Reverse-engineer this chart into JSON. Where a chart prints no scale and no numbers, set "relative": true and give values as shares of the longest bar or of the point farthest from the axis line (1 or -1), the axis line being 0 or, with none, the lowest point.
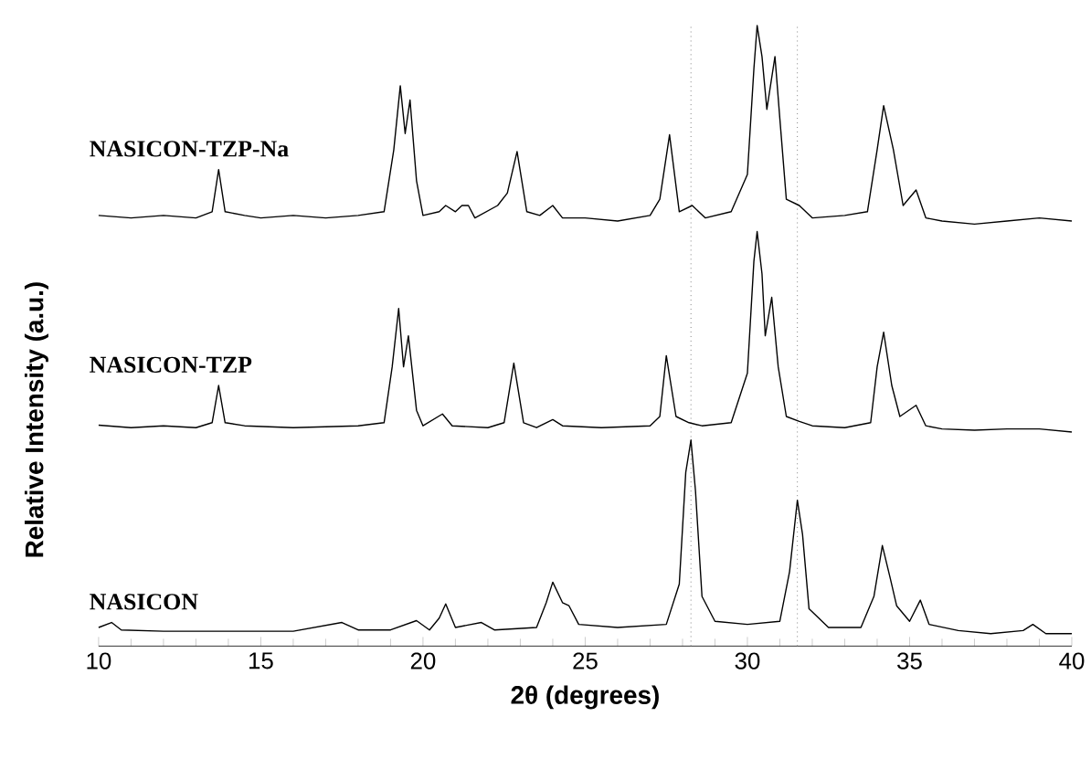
{
  "chart_data": {
    "type": "line",
    "relative": true,
    "xlabel": "2θ (degrees)",
    "ylabel": "Relative Intensity (a.u.)",
    "xlim": [
      10,
      40
    ],
    "xticks": [
      10,
      15,
      20,
      25,
      30,
      35,
      40
    ],
    "ref_lines": [
      {
        "axis": "x",
        "value": 28.26,
        "color": "#808080",
        "line_style": "dotted"
      },
      {
        "axis": "x",
        "value": 31.54,
        "color": "#808080",
        "line_style": "dotted"
      }
    ],
    "series": [
      {
        "name": "NASICON-TZP-Na",
        "color": "#000000",
        "x": [
          10,
          11,
          12,
          13,
          13.5,
          13.7,
          13.9,
          14.5,
          15,
          16,
          17,
          18,
          18.8,
          19.1,
          19.3,
          19.45,
          19.6,
          19.8,
          20,
          20.5,
          20.7,
          21,
          21.2,
          21.4,
          21.6,
          22.3,
          22.6,
          22.9,
          23.2,
          23.6,
          24,
          24.3,
          25,
          26,
          27,
          27.3,
          27.6,
          27.9,
          28.3,
          28.7,
          29.5,
          30,
          30.2,
          30.3,
          30.45,
          30.6,
          30.85,
          31.0,
          31.2,
          31.6,
          32,
          33,
          33.7,
          34.0,
          34.2,
          34.5,
          34.8,
          35.2,
          35.5,
          36,
          37,
          38,
          39,
          40
        ],
        "values": [
          0.694,
          0.69,
          0.694,
          0.69,
          0.7,
          0.768,
          0.7,
          0.694,
          0.69,
          0.694,
          0.69,
          0.694,
          0.7,
          0.8,
          0.903,
          0.826,
          0.88,
          0.75,
          0.694,
          0.7,
          0.71,
          0.7,
          0.71,
          0.71,
          0.69,
          0.71,
          0.73,
          0.797,
          0.7,
          0.694,
          0.71,
          0.69,
          0.69,
          0.685,
          0.694,
          0.72,
          0.824,
          0.7,
          0.71,
          0.69,
          0.7,
          0.76,
          0.93,
          1.0,
          0.95,
          0.865,
          0.95,
          0.85,
          0.72,
          0.71,
          0.69,
          0.694,
          0.7,
          0.8,
          0.871,
          0.8,
          0.71,
          0.735,
          0.69,
          0.685,
          0.68,
          0.685,
          0.69,
          0.685
        ]
      },
      {
        "name": "NASICON-TZP",
        "color": "#000000",
        "x": [
          10,
          11,
          12,
          13,
          13.5,
          13.7,
          13.9,
          14.5,
          16,
          18,
          18.8,
          19.05,
          19.25,
          19.4,
          19.55,
          19.8,
          20,
          20.6,
          20.9,
          22,
          22.5,
          22.8,
          23.1,
          23.5,
          24,
          24.3,
          25.5,
          27,
          27.3,
          27.5,
          27.8,
          28.2,
          28.6,
          29.5,
          30,
          30.2,
          30.3,
          30.45,
          30.55,
          30.75,
          30.95,
          31.2,
          31.6,
          32,
          33,
          33.8,
          34.0,
          34.2,
          34.45,
          34.7,
          35.2,
          35.5,
          36,
          37,
          38,
          39,
          40
        ],
        "values": [
          0.356,
          0.352,
          0.355,
          0.352,
          0.36,
          0.42,
          0.36,
          0.355,
          0.352,
          0.355,
          0.36,
          0.45,
          0.544,
          0.45,
          0.5,
          0.38,
          0.355,
          0.374,
          0.355,
          0.352,
          0.36,
          0.456,
          0.36,
          0.352,
          0.365,
          0.355,
          0.352,
          0.355,
          0.37,
          0.468,
          0.37,
          0.36,
          0.355,
          0.36,
          0.44,
          0.62,
          0.668,
          0.6,
          0.5,
          0.562,
          0.45,
          0.37,
          0.362,
          0.355,
          0.352,
          0.36,
          0.45,
          0.506,
          0.42,
          0.37,
          0.388,
          0.355,
          0.35,
          0.348,
          0.35,
          0.35,
          0.345
        ]
      },
      {
        "name": "NASICON",
        "color": "#000000",
        "x": [
          10,
          10.4,
          10.7,
          12,
          14,
          16,
          17.5,
          18,
          19,
          19.8,
          20.2,
          20.5,
          20.7,
          21,
          21.8,
          22.2,
          23.5,
          23.8,
          24.0,
          24.3,
          24.5,
          24.8,
          26,
          27.5,
          27.9,
          28.1,
          28.26,
          28.4,
          28.6,
          29,
          30,
          31,
          31.3,
          31.54,
          31.7,
          31.9,
          32.5,
          33.5,
          33.9,
          34.16,
          34.4,
          34.6,
          35,
          35.33,
          35.6,
          36.5,
          37.5,
          38.5,
          38.8,
          39.2,
          40
        ],
        "values": [
          0.03,
          0.038,
          0.026,
          0.024,
          0.024,
          0.024,
          0.038,
          0.026,
          0.026,
          0.041,
          0.026,
          0.045,
          0.068,
          0.03,
          0.038,
          0.026,
          0.03,
          0.07,
          0.103,
          0.07,
          0.065,
          0.035,
          0.03,
          0.035,
          0.1,
          0.28,
          0.332,
          0.25,
          0.08,
          0.04,
          0.035,
          0.04,
          0.12,
          0.235,
          0.18,
          0.06,
          0.03,
          0.03,
          0.08,
          0.162,
          0.11,
          0.065,
          0.04,
          0.074,
          0.035,
          0.025,
          0.02,
          0.025,
          0.035,
          0.02,
          0.02
        ]
      }
    ]
  }
}
